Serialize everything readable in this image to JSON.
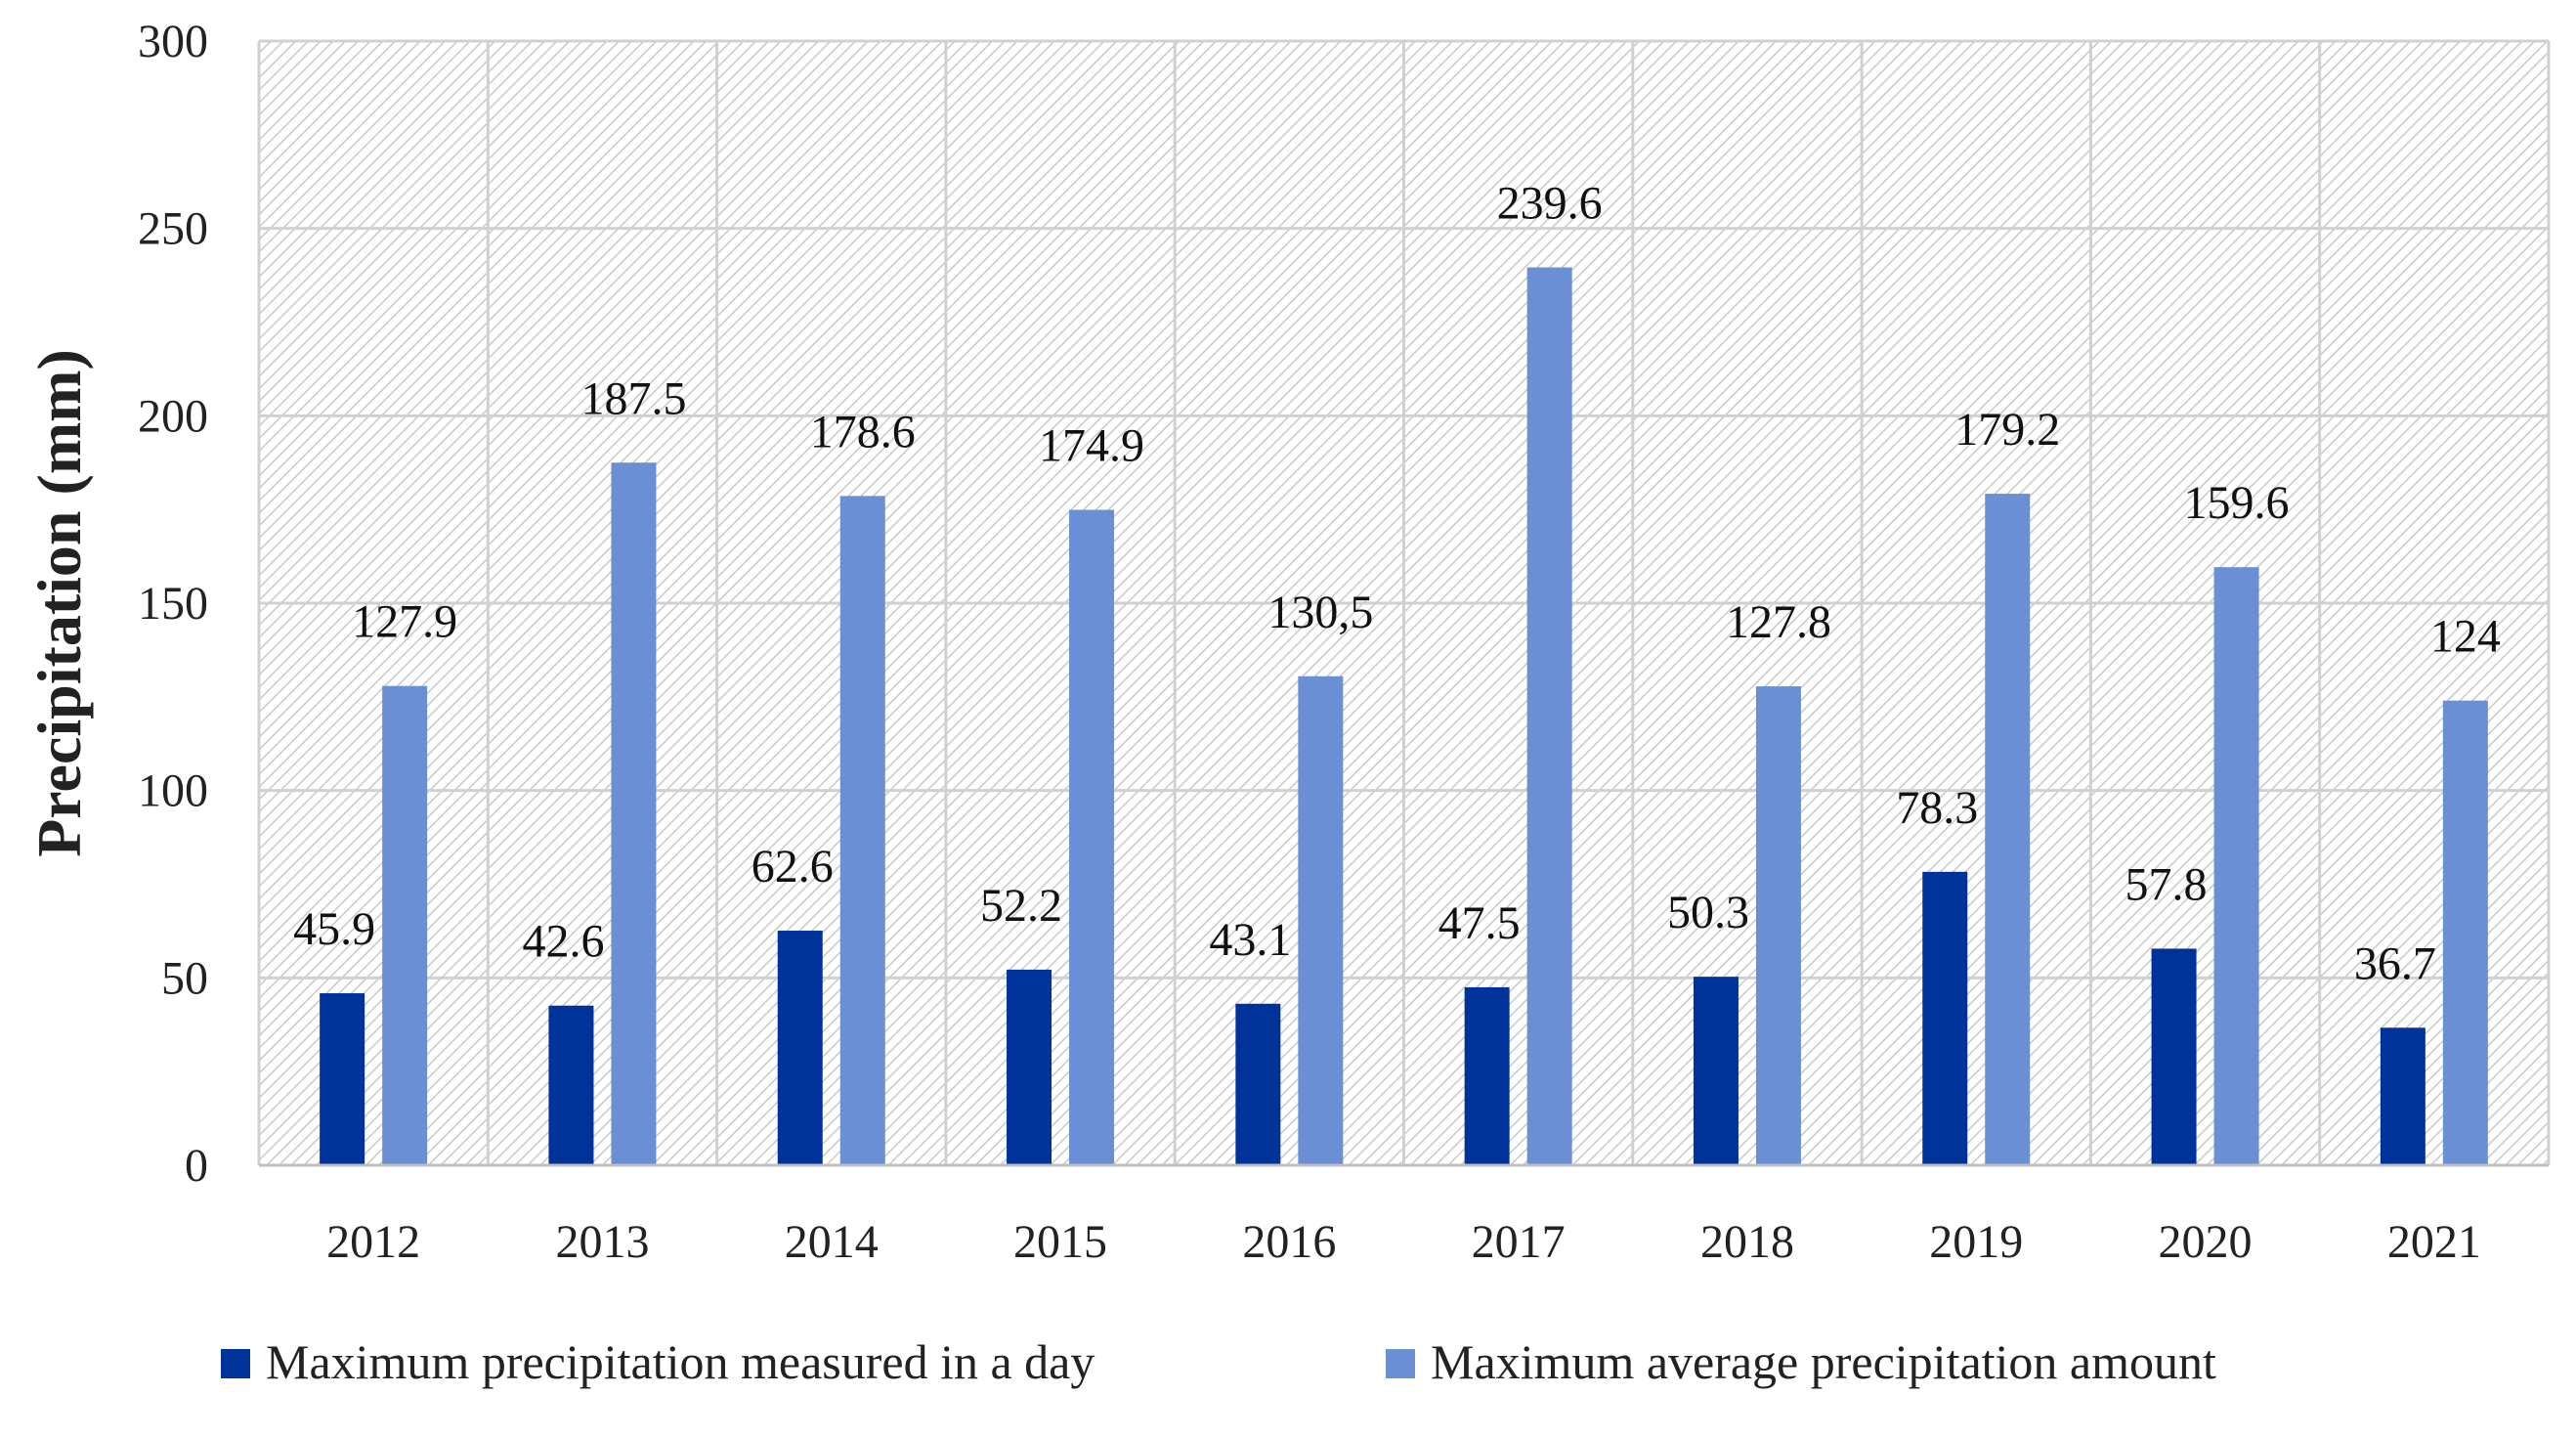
{
  "chart_data": {
    "type": "bar",
    "title": "",
    "xlabel": "",
    "ylabel": "Precipitation (mm)",
    "ylim": [
      0,
      300
    ],
    "yticks": [
      "0",
      "50",
      "100",
      "150",
      "200",
      "250",
      "300"
    ],
    "grid": true,
    "legend_position": "bottom",
    "categories": [
      "2012",
      "2013",
      "2014",
      "2015",
      "2016",
      "2017",
      "2018",
      "2019",
      "2020",
      "2021"
    ],
    "series": [
      {
        "name": "Maximum precipitation measured in a day",
        "color": "#003399",
        "values": [
          45.9,
          42.6,
          62.6,
          52.2,
          43.1,
          47.5,
          50.3,
          78.3,
          57.8,
          36.7
        ],
        "labels": [
          "45.9",
          "42.6",
          "62.6",
          "52.2",
          "43.1",
          "47.5",
          "50.3",
          "78.3",
          "57.8",
          "36.7"
        ]
      },
      {
        "name": "Maximum average precipitation amount",
        "color": "#6a8fd4",
        "values": [
          127.9,
          187.5,
          178.6,
          174.9,
          130.5,
          239.6,
          127.8,
          179.2,
          159.6,
          124
        ],
        "labels": [
          "127.9",
          "187.5",
          "178.6",
          "174.9",
          "130,5",
          "239.6",
          "127.8",
          "179.2",
          "159.6",
          "124"
        ]
      }
    ]
  }
}
